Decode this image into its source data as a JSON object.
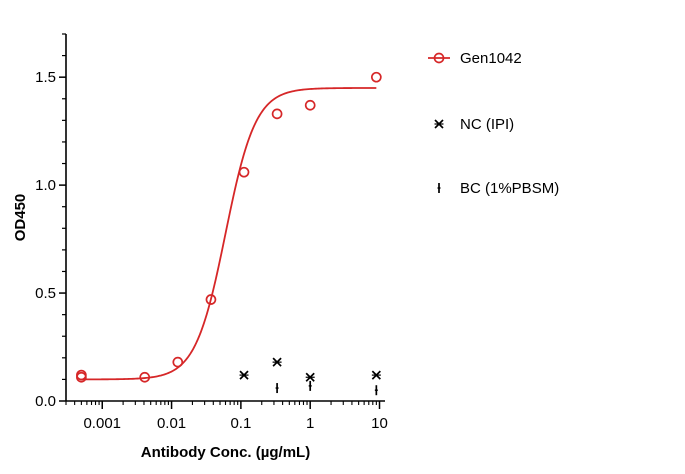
{
  "chart_data": {
    "type": "scatter",
    "xlabel": "Antibody Conc. (µg/mL)",
    "ylabel": "OD450",
    "xscale": "log",
    "xlim": [
      0.0003,
      12
    ],
    "ylim": [
      0,
      1.7
    ],
    "x_ticks": [
      {
        "value": 0.001,
        "label": "0.001"
      },
      {
        "value": 0.01,
        "label": "0.01"
      },
      {
        "value": 0.1,
        "label": "0.1"
      },
      {
        "value": 1,
        "label": "1"
      },
      {
        "value": 10,
        "label": "10"
      }
    ],
    "y_ticks": [
      {
        "value": 0.0,
        "label": "0.0"
      },
      {
        "value": 0.5,
        "label": "0.5"
      },
      {
        "value": 1.0,
        "label": "1.0"
      },
      {
        "value": 1.5,
        "label": "1.5"
      }
    ],
    "legend_position": "right",
    "grid": false,
    "series": [
      {
        "name": "Gen1042",
        "marker": "open-circle",
        "color": "#d62728",
        "fit": "4PL",
        "fit_params": {
          "bottom": 0.1,
          "top": 1.45,
          "ec50": 0.06,
          "hill": 2.0
        },
        "points": [
          {
            "x": 0.0005,
            "y": 0.11
          },
          {
            "x": 0.0005,
            "y": 0.12
          },
          {
            "x": 0.0041,
            "y": 0.11
          },
          {
            "x": 0.0123,
            "y": 0.18
          },
          {
            "x": 0.037,
            "y": 0.47
          },
          {
            "x": 0.111,
            "y": 1.06
          },
          {
            "x": 0.333,
            "y": 1.33
          },
          {
            "x": 1.0,
            "y": 1.37
          },
          {
            "x": 9.0,
            "y": 1.5
          }
        ]
      },
      {
        "name": "NC (IPI)",
        "marker": "x-star",
        "color": "#000000",
        "points": [
          {
            "x": 0.111,
            "y": 0.12
          },
          {
            "x": 0.333,
            "y": 0.18
          },
          {
            "x": 1.0,
            "y": 0.11
          },
          {
            "x": 9.0,
            "y": 0.12
          }
        ]
      },
      {
        "name": "BC (1%PBSM)",
        "marker": "plus",
        "color": "#000000",
        "points": [
          {
            "x": 0.333,
            "y": 0.06
          },
          {
            "x": 1.0,
            "y": 0.07
          },
          {
            "x": 9.0,
            "y": 0.05
          }
        ]
      }
    ]
  }
}
